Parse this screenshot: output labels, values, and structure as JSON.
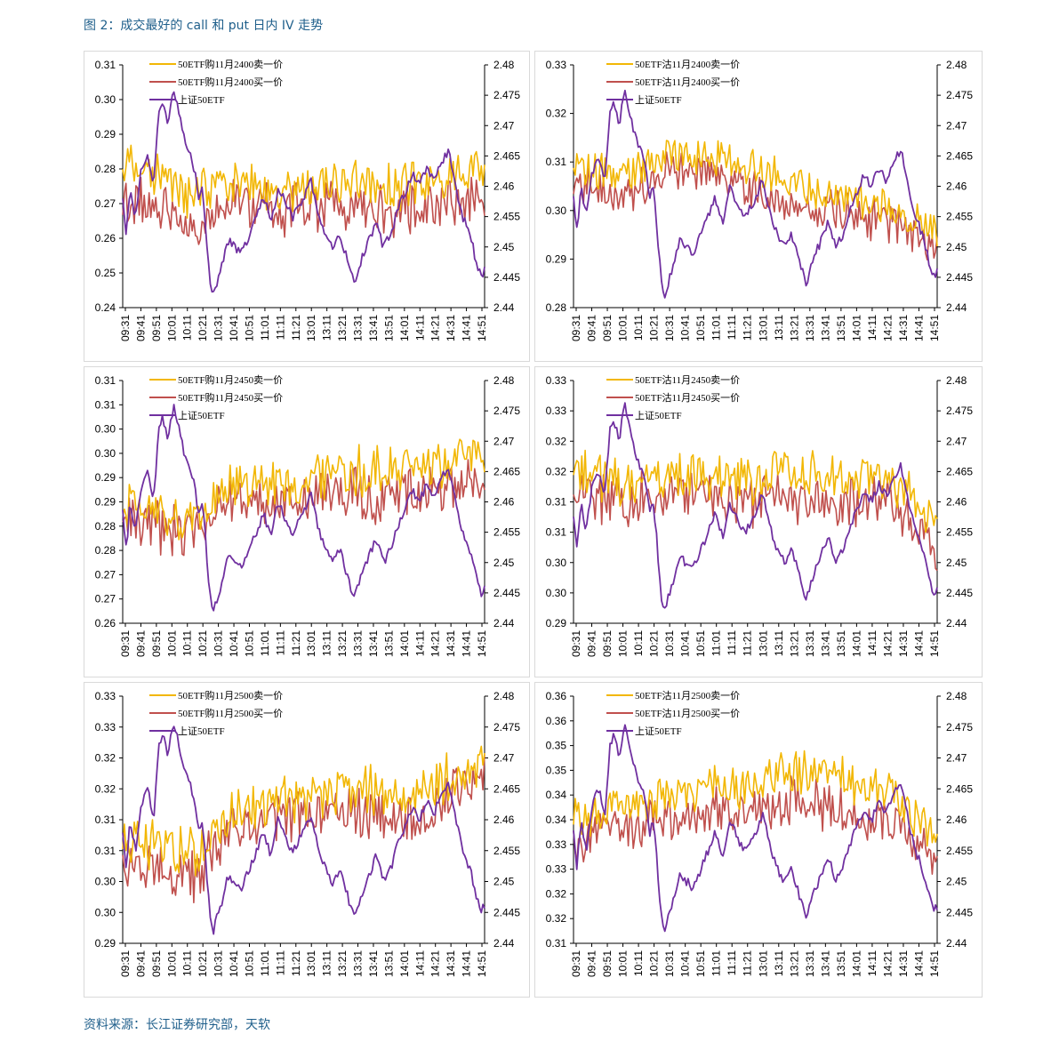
{
  "figure": {
    "title": "图 2：成交最好的 call 和 put 日内 IV 走势",
    "source": "资料来源：长江证券研究部，天软"
  },
  "colors": {
    "sell": "#f2b705",
    "buy": "#c0504d",
    "etf": "#7030a0"
  },
  "times": [
    "09:31",
    "09:41",
    "09:51",
    "10:01",
    "10:11",
    "10:21",
    "10:31",
    "10:41",
    "10:51",
    "11:01",
    "11:11",
    "11:21",
    "13:01",
    "13:11",
    "13:21",
    "13:31",
    "13:41",
    "13:51",
    "14:01",
    "14:11",
    "14:21",
    "14:31",
    "14:41",
    "14:51"
  ],
  "etf_path": [
    [
      0,
      2.458
    ],
    [
      0.01,
      2.452
    ],
    [
      0.02,
      2.46
    ],
    [
      0.035,
      2.455
    ],
    [
      0.05,
      2.462
    ],
    [
      0.07,
      2.465
    ],
    [
      0.085,
      2.46
    ],
    [
      0.1,
      2.472
    ],
    [
      0.11,
      2.474
    ],
    [
      0.125,
      2.47
    ],
    [
      0.14,
      2.476
    ],
    [
      0.155,
      2.472
    ],
    [
      0.17,
      2.468
    ],
    [
      0.19,
      2.465
    ],
    [
      0.2,
      2.462
    ],
    [
      0.21,
      2.458
    ],
    [
      0.22,
      2.46
    ],
    [
      0.23,
      2.453
    ],
    [
      0.24,
      2.445
    ],
    [
      0.25,
      2.442
    ],
    [
      0.27,
      2.446
    ],
    [
      0.28,
      2.448
    ],
    [
      0.29,
      2.451
    ],
    [
      0.31,
      2.45
    ],
    [
      0.33,
      2.449
    ],
    [
      0.35,
      2.452
    ],
    [
      0.37,
      2.455
    ],
    [
      0.39,
      2.458
    ],
    [
      0.41,
      2.454
    ],
    [
      0.43,
      2.46
    ],
    [
      0.45,
      2.457
    ],
    [
      0.47,
      2.455
    ],
    [
      0.5,
      2.458
    ],
    [
      0.52,
      2.461
    ],
    [
      0.54,
      2.456
    ],
    [
      0.56,
      2.452
    ],
    [
      0.58,
      2.45
    ],
    [
      0.6,
      2.452
    ],
    [
      0.62,
      2.448
    ],
    [
      0.64,
      2.444
    ],
    [
      0.66,
      2.448
    ],
    [
      0.68,
      2.451
    ],
    [
      0.7,
      2.454
    ],
    [
      0.72,
      2.45
    ],
    [
      0.74,
      2.452
    ],
    [
      0.76,
      2.456
    ],
    [
      0.78,
      2.459
    ],
    [
      0.8,
      2.462
    ],
    [
      0.82,
      2.46
    ],
    [
      0.84,
      2.463
    ],
    [
      0.86,
      2.461
    ],
    [
      0.88,
      2.464
    ],
    [
      0.9,
      2.466
    ],
    [
      0.92,
      2.46
    ],
    [
      0.94,
      2.455
    ],
    [
      0.96,
      2.452
    ],
    [
      0.975,
      2.448
    ],
    [
      0.99,
      2.445
    ],
    [
      1,
      2.446
    ]
  ],
  "charts": [
    {
      "panel": "call-2400",
      "legend": [
        "50ETF购11月2400卖一价",
        "50ETF购11月2400买一价",
        "上证50ETF"
      ],
      "y_ticks": [
        "0.24",
        "0.25",
        "0.26",
        "0.27",
        "0.28",
        "0.29",
        "0.30",
        "0.31"
      ],
      "y2_ticks": [
        "2.44",
        "2.445",
        "2.45",
        "2.455",
        "2.46",
        "2.465",
        "2.47",
        "2.475",
        "2.48"
      ],
      "ylim": [
        0.24,
        0.31
      ],
      "y2lim": [
        2.44,
        2.48
      ],
      "sell_mean": [
        [
          0,
          0.282
        ],
        [
          0.2,
          0.272
        ],
        [
          0.3,
          0.276
        ],
        [
          0.45,
          0.274
        ],
        [
          0.6,
          0.276
        ],
        [
          0.75,
          0.275
        ],
        [
          0.9,
          0.276
        ],
        [
          1,
          0.28
        ]
      ],
      "buy_mean": [
        [
          0,
          0.272
        ],
        [
          0.2,
          0.264
        ],
        [
          0.3,
          0.27
        ],
        [
          0.45,
          0.268
        ],
        [
          0.6,
          0.27
        ],
        [
          0.75,
          0.268
        ],
        [
          0.9,
          0.27
        ],
        [
          1,
          0.272
        ]
      ],
      "amp": 0.006
    },
    {
      "panel": "put-2400",
      "legend": [
        "50ETF沽11月2400卖一价",
        "50ETF沽11月2400买一价",
        "上证50ETF"
      ],
      "y_ticks": [
        "0.28",
        "0.29",
        "0.30",
        "0.31",
        "0.32",
        "0.33"
      ],
      "y2_ticks": [
        "2.44",
        "2.445",
        "2.45",
        "2.455",
        "2.46",
        "2.465",
        "2.47",
        "2.475",
        "2.48"
      ],
      "ylim": [
        0.28,
        0.335
      ],
      "y2lim": [
        2.44,
        2.48
      ],
      "sell_mean": [
        [
          0,
          0.312
        ],
        [
          0.15,
          0.31
        ],
        [
          0.25,
          0.315
        ],
        [
          0.4,
          0.314
        ],
        [
          0.55,
          0.31
        ],
        [
          0.7,
          0.306
        ],
        [
          0.85,
          0.303
        ],
        [
          0.95,
          0.3
        ],
        [
          1,
          0.296
        ]
      ],
      "buy_mean": [
        [
          0,
          0.308
        ],
        [
          0.15,
          0.306
        ],
        [
          0.25,
          0.311
        ],
        [
          0.4,
          0.309
        ],
        [
          0.55,
          0.305
        ],
        [
          0.7,
          0.302
        ],
        [
          0.85,
          0.3
        ],
        [
          0.95,
          0.296
        ],
        [
          1,
          0.293
        ]
      ],
      "amp": 0.004
    },
    {
      "panel": "call-2450",
      "legend": [
        "50ETF购11月2450卖一价",
        "50ETF购11月2450买一价",
        "上证50ETF"
      ],
      "y_ticks": [
        "0.26",
        "0.27",
        "0.27",
        "0.28",
        "0.28",
        "0.29",
        "0.29",
        "0.30",
        "0.30",
        "0.31",
        "0.31"
      ],
      "y2_ticks": [
        "2.44",
        "2.445",
        "2.45",
        "2.455",
        "2.46",
        "2.465",
        "2.47",
        "2.475",
        "2.48"
      ],
      "ylim": [
        0.26,
        0.31
      ],
      "y2lim": [
        2.44,
        2.48
      ],
      "sell_mean": [
        [
          0,
          0.284
        ],
        [
          0.2,
          0.281
        ],
        [
          0.3,
          0.289
        ],
        [
          0.45,
          0.288
        ],
        [
          0.6,
          0.291
        ],
        [
          0.75,
          0.292
        ],
        [
          0.9,
          0.293
        ],
        [
          1,
          0.294
        ]
      ],
      "buy_mean": [
        [
          0,
          0.282
        ],
        [
          0.2,
          0.278
        ],
        [
          0.3,
          0.286
        ],
        [
          0.45,
          0.284
        ],
        [
          0.6,
          0.287
        ],
        [
          0.75,
          0.286
        ],
        [
          0.9,
          0.288
        ],
        [
          1,
          0.289
        ]
      ],
      "amp": 0.0045
    },
    {
      "panel": "put-2450",
      "legend": [
        "50ETF沽11月2450卖一价",
        "50ETF沽11月2450买一价",
        "上证50ETF"
      ],
      "y_ticks": [
        "0.29",
        "0.30",
        "0.30",
        "0.31",
        "0.31",
        "0.32",
        "0.32",
        "0.33",
        "0.33"
      ],
      "y2_ticks": [
        "2.44",
        "2.445",
        "2.45",
        "2.455",
        "2.46",
        "2.465",
        "2.47",
        "2.475",
        "2.48"
      ],
      "ylim": [
        0.295,
        0.335
      ],
      "y2lim": [
        2.44,
        2.48
      ],
      "sell_mean": [
        [
          0,
          0.32
        ],
        [
          0.15,
          0.318
        ],
        [
          0.3,
          0.32
        ],
        [
          0.45,
          0.318
        ],
        [
          0.6,
          0.32
        ],
        [
          0.75,
          0.319
        ],
        [
          0.88,
          0.318
        ],
        [
          0.95,
          0.315
        ],
        [
          1,
          0.31
        ]
      ],
      "buy_mean": [
        [
          0,
          0.316
        ],
        [
          0.15,
          0.315
        ],
        [
          0.3,
          0.317
        ],
        [
          0.45,
          0.315
        ],
        [
          0.6,
          0.316
        ],
        [
          0.75,
          0.315
        ],
        [
          0.88,
          0.315
        ],
        [
          0.95,
          0.311
        ],
        [
          1,
          0.306
        ]
      ],
      "amp": 0.0035
    },
    {
      "panel": "call-2500",
      "legend": [
        "50ETF购11月2500卖一价",
        "50ETF购11月2500买一价",
        "上证50ETF"
      ],
      "y_ticks": [
        "0.29",
        "0.30",
        "0.30",
        "0.31",
        "0.31",
        "0.32",
        "0.32",
        "0.33",
        "0.33"
      ],
      "y2_ticks": [
        "2.44",
        "2.445",
        "2.45",
        "2.455",
        "2.46",
        "2.465",
        "2.47",
        "2.475",
        "2.48"
      ],
      "ylim": [
        0.295,
        0.335
      ],
      "y2lim": [
        2.44,
        2.48
      ],
      "sell_mean": [
        [
          0,
          0.312
        ],
        [
          0.2,
          0.31
        ],
        [
          0.3,
          0.316
        ],
        [
          0.45,
          0.318
        ],
        [
          0.6,
          0.32
        ],
        [
          0.75,
          0.319
        ],
        [
          0.9,
          0.322
        ],
        [
          1,
          0.324
        ]
      ],
      "buy_mean": [
        [
          0,
          0.308
        ],
        [
          0.2,
          0.306
        ],
        [
          0.3,
          0.314
        ],
        [
          0.45,
          0.315
        ],
        [
          0.6,
          0.317
        ],
        [
          0.75,
          0.315
        ],
        [
          0.9,
          0.318
        ],
        [
          1,
          0.322
        ]
      ],
      "amp": 0.0035
    },
    {
      "panel": "put-2500",
      "legend": [
        "50ETF沽11月2500卖一价",
        "50ETF沽11月2500买一价",
        "上证50ETF"
      ],
      "y_ticks": [
        "0.31",
        "0.32",
        "0.32",
        "0.33",
        "0.33",
        "0.34",
        "0.34",
        "0.35",
        "0.35",
        "0.36",
        "0.36"
      ],
      "y2_ticks": [
        "2.44",
        "2.445",
        "2.45",
        "2.455",
        "2.46",
        "2.465",
        "2.47",
        "2.475",
        "2.48"
      ],
      "ylim": [
        0.315,
        0.365
      ],
      "y2lim": [
        2.44,
        2.48
      ],
      "sell_mean": [
        [
          0,
          0.34
        ],
        [
          0.15,
          0.344
        ],
        [
          0.3,
          0.345
        ],
        [
          0.45,
          0.347
        ],
        [
          0.6,
          0.35
        ],
        [
          0.75,
          0.348
        ],
        [
          0.88,
          0.345
        ],
        [
          0.95,
          0.34
        ],
        [
          1,
          0.338
        ]
      ],
      "buy_mean": [
        [
          0,
          0.335
        ],
        [
          0.15,
          0.339
        ],
        [
          0.3,
          0.34
        ],
        [
          0.45,
          0.342
        ],
        [
          0.6,
          0.344
        ],
        [
          0.75,
          0.342
        ],
        [
          0.88,
          0.34
        ],
        [
          0.95,
          0.335
        ],
        [
          1,
          0.333
        ]
      ],
      "amp": 0.004
    }
  ]
}
